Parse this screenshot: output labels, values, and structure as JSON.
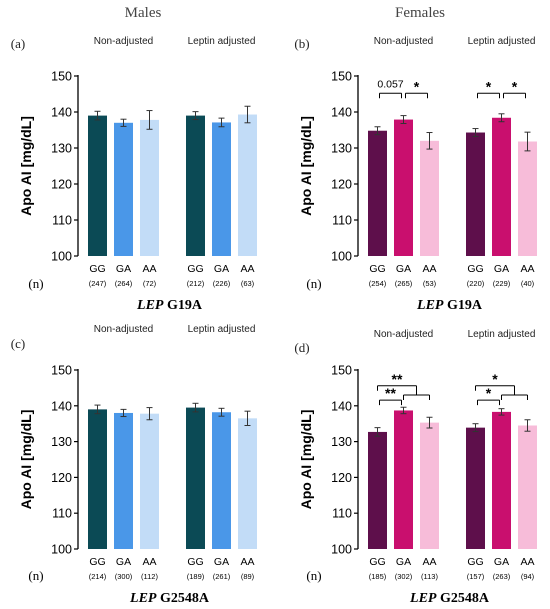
{
  "figure": {
    "column_titles": [
      "Males",
      "Females"
    ],
    "colors": {
      "male_GG": "#0b4a55",
      "male_GA": "#4a97e8",
      "male_AA": "#c2dcf7",
      "female_GG": "#5e0f4b",
      "female_GA": "#c90f6e",
      "female_AA": "#f7bcd9",
      "axis": "#000000"
    }
  },
  "chart_data": [
    {
      "type": "bar",
      "panel": "(a)",
      "column": "Males",
      "gene_label_italic": "LEP",
      "gene_label": "G19A",
      "ylabel": "Apo AI [mg/dL]",
      "ylim": [
        100,
        150
      ],
      "yticks": [
        100,
        110,
        120,
        130,
        140,
        150
      ],
      "groups": [
        "Non-adjusted",
        "Leptin adjusted"
      ],
      "categories": [
        "GG",
        "GA",
        "AA"
      ],
      "n_label": "(n)",
      "series": [
        {
          "group": "Non-adjusted",
          "values": [
            139.0,
            137.0,
            137.8
          ],
          "errors": [
            1.2,
            1.0,
            2.6
          ],
          "n": [
            "(247)",
            "(264)",
            "(72)"
          ]
        },
        {
          "group": "Leptin adjusted",
          "values": [
            139.0,
            137.1,
            139.3
          ],
          "errors": [
            1.1,
            1.2,
            2.3
          ],
          "n": [
            "(212)",
            "(226)",
            "(63)"
          ]
        }
      ],
      "significance": []
    },
    {
      "type": "bar",
      "panel": "(b)",
      "column": "Females",
      "gene_label_italic": "LEP",
      "gene_label": "G19A",
      "ylabel": "Apo AI [mg/dL]",
      "ylim": [
        100,
        150
      ],
      "yticks": [
        100,
        110,
        120,
        130,
        140,
        150
      ],
      "groups": [
        "Non-adjusted",
        "Leptin adjusted"
      ],
      "categories": [
        "GG",
        "GA",
        "AA"
      ],
      "n_label": "(n)",
      "series": [
        {
          "group": "Non-adjusted",
          "values": [
            134.8,
            137.9,
            132.0
          ],
          "errors": [
            1.1,
            1.1,
            2.3
          ],
          "n": [
            "(254)",
            "(265)",
            "(53)"
          ]
        },
        {
          "group": "Leptin adjusted",
          "values": [
            134.3,
            138.4,
            131.8
          ],
          "errors": [
            1.1,
            1.1,
            2.6
          ],
          "n": [
            "(220)",
            "(229)",
            "(40)"
          ]
        }
      ],
      "significance": [
        {
          "group": 0,
          "label": "0.057",
          "kind": "line",
          "from": 0,
          "to": 1,
          "level": 145.2
        },
        {
          "group": 0,
          "label": "*",
          "kind": "line",
          "from": 1,
          "to": 2,
          "level": 145.2
        },
        {
          "group": 1,
          "label": "*",
          "kind": "line",
          "from": 0,
          "to": 1,
          "level": 145.2
        },
        {
          "group": 1,
          "label": "*",
          "kind": "line",
          "from": 1,
          "to": 2,
          "level": 145.2
        }
      ]
    },
    {
      "type": "bar",
      "panel": "(c)",
      "column": "Males",
      "gene_label_italic": "LEP",
      "gene_label": "G2548A",
      "ylabel": "Apo AI [mg/dL]",
      "ylim": [
        100,
        150
      ],
      "yticks": [
        100,
        110,
        120,
        130,
        140,
        150
      ],
      "groups": [
        "Non-adjusted",
        "Leptin adjusted"
      ],
      "categories": [
        "GG",
        "GA",
        "AA"
      ],
      "n_label": "(n)",
      "series": [
        {
          "group": "Non-adjusted",
          "values": [
            139.0,
            138.0,
            137.8
          ],
          "errors": [
            1.2,
            1.0,
            1.7
          ],
          "n": [
            "(214)",
            "(300)",
            "(112)"
          ]
        },
        {
          "group": "Leptin adjusted",
          "values": [
            139.5,
            138.2,
            136.5
          ],
          "errors": [
            1.2,
            1.1,
            2.0
          ],
          "n": [
            "(189)",
            "(261)",
            "(89)"
          ]
        }
      ],
      "significance": []
    },
    {
      "type": "bar",
      "panel": "(d)",
      "column": "Females",
      "gene_label_italic": "LEP",
      "gene_label": "G2548A",
      "ylabel": "Apo AI [mg/dL]",
      "ylim": [
        100,
        150
      ],
      "yticks": [
        100,
        110,
        120,
        130,
        140,
        150
      ],
      "groups": [
        "Non-adjusted",
        "Leptin adjusted"
      ],
      "categories": [
        "GG",
        "GA",
        "AA"
      ],
      "n_label": "(n)",
      "series": [
        {
          "group": "Non-adjusted",
          "values": [
            132.7,
            138.7,
            135.3
          ],
          "errors": [
            1.2,
            0.9,
            1.5
          ],
          "n": [
            "(185)",
            "(302)",
            "(113)"
          ]
        },
        {
          "group": "Leptin adjusted",
          "values": [
            133.9,
            138.3,
            134.5
          ],
          "errors": [
            1.1,
            0.9,
            1.6
          ],
          "n": [
            "(157)",
            "(263)",
            "(94)"
          ]
        }
      ],
      "significance": [
        {
          "group": 0,
          "label": "**",
          "kind": "bracket",
          "from": 0,
          "to": [
            1,
            2
          ],
          "level": 145.6,
          "stem": 143.0
        },
        {
          "group": 0,
          "label": "**",
          "kind": "line",
          "from": 0,
          "to": 1,
          "level": 141.6
        },
        {
          "group": 1,
          "label": "*",
          "kind": "bracket",
          "from": 0,
          "to": [
            1,
            2
          ],
          "level": 145.6,
          "stem": 143.0
        },
        {
          "group": 1,
          "label": "*",
          "kind": "line",
          "from": 0,
          "to": 1,
          "level": 141.6
        }
      ]
    }
  ]
}
